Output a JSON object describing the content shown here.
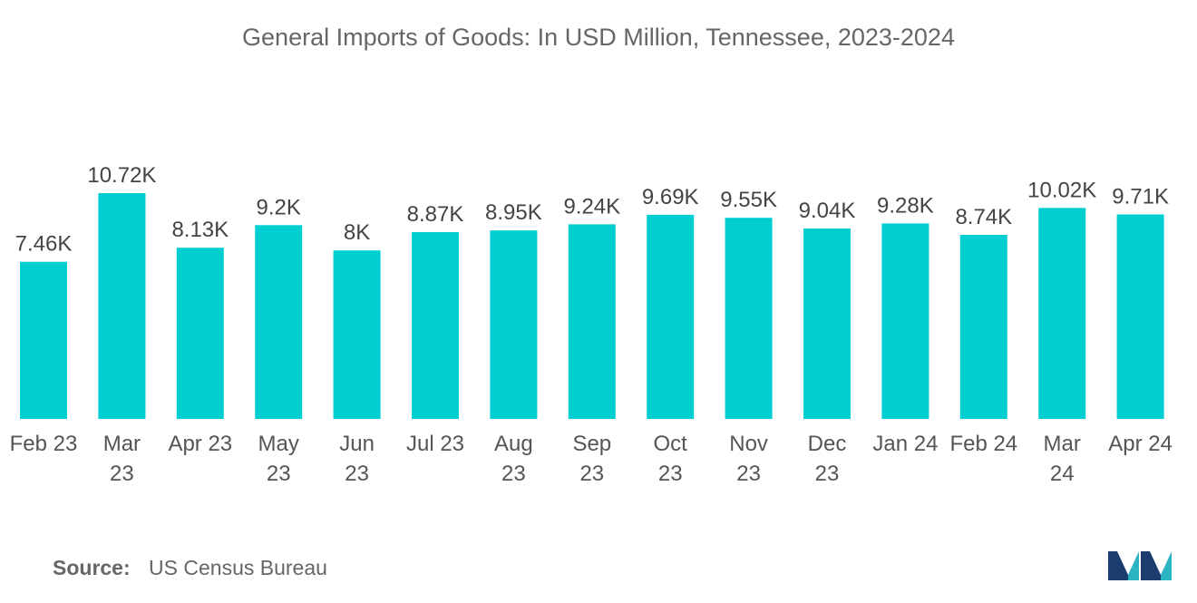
{
  "chart_data": {
    "type": "bar",
    "title": "General Imports of Goods: In USD Million, Tennessee, 2023-2024",
    "categories": [
      [
        "Feb 23"
      ],
      [
        "Mar",
        "23"
      ],
      [
        "Apr 23"
      ],
      [
        "May",
        "23"
      ],
      [
        "Jun",
        "23"
      ],
      [
        "Jul 23"
      ],
      [
        "Aug",
        "23"
      ],
      [
        "Sep",
        "23"
      ],
      [
        "Oct",
        "23"
      ],
      [
        "Nov",
        "23"
      ],
      [
        "Dec",
        "23"
      ],
      [
        "Jan 24"
      ],
      [
        "Feb 24"
      ],
      [
        "Mar",
        "24"
      ],
      [
        "Apr 24"
      ]
    ],
    "values": [
      7.46,
      10.72,
      8.13,
      9.2,
      8,
      8.87,
      8.95,
      9.24,
      9.69,
      9.55,
      9.04,
      9.28,
      8.74,
      10.02,
      9.71
    ],
    "data_labels": [
      "7.46K",
      "10.72K",
      "8.13K",
      "9.2K",
      "8K",
      "8.87K",
      "8.95K",
      "9.24K",
      "9.69K",
      "9.55K",
      "9.04K",
      "9.28K",
      "8.74K",
      "10.02K",
      "9.71K"
    ],
    "unit": "K",
    "color": "#00CED1",
    "xlabel": "",
    "ylabel": "",
    "grid": false,
    "ylim": [
      0,
      10.72
    ]
  },
  "footer": {
    "source_label": "Source:",
    "source_text": "US Census Bureau"
  },
  "logo": {
    "icon": "mordor-intelligence-logo-icon",
    "colors": [
      "#1a3c6e",
      "#2bb5c4"
    ]
  }
}
